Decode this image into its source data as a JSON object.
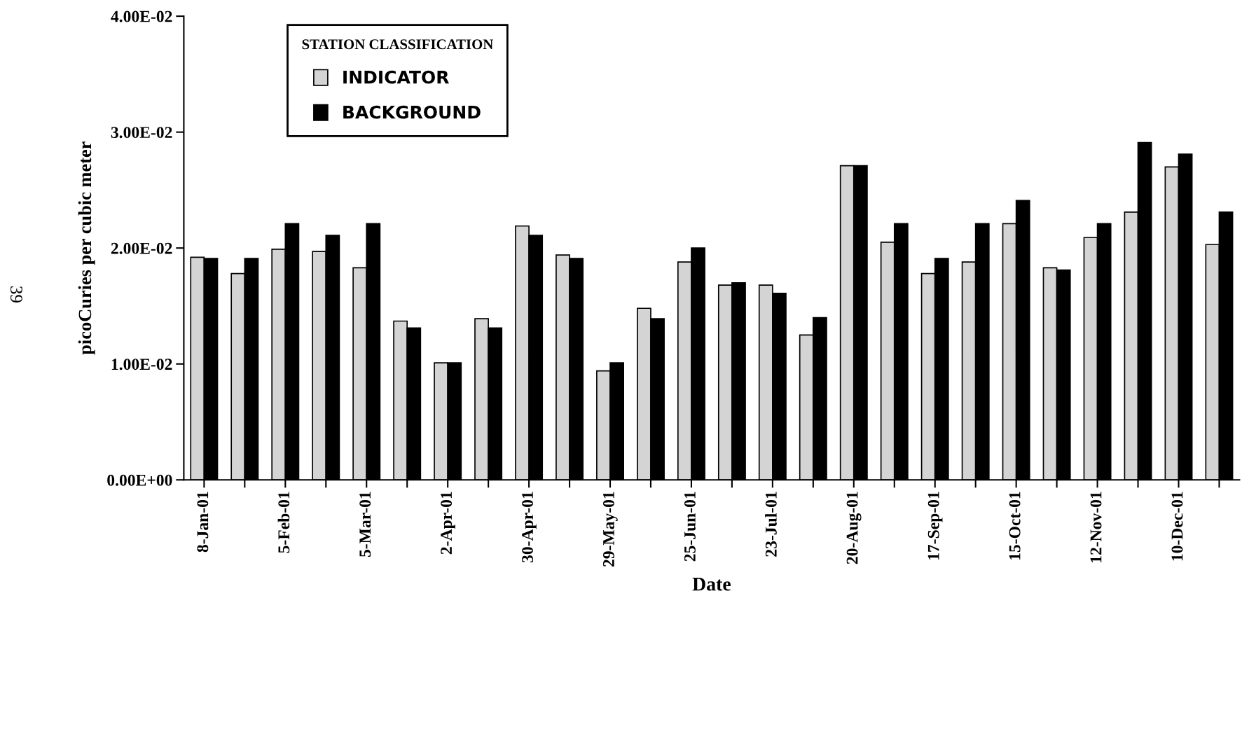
{
  "chart_data": {
    "type": "bar",
    "xlabel": "Date",
    "ylabel": "picoCuries per cubic meter",
    "legend_title": "STATION CLASSIFICATION",
    "categories": [
      "8-Jan-01",
      null,
      "5-Feb-01",
      null,
      "5-Mar-01",
      null,
      "2-Apr-01",
      null,
      "30-Apr-01",
      null,
      "29-May-01",
      null,
      "25-Jun-01",
      null,
      "23-Jul-01",
      null,
      "20-Aug-01",
      null,
      "17-Sep-01",
      null,
      "15-Oct-01",
      null,
      "12-Nov-01",
      null,
      "10-Dec-01",
      null
    ],
    "series": [
      {
        "name": "INDICATOR",
        "color": "#d4d4d4",
        "values": [
          0.0192,
          0.0178,
          0.0199,
          0.0197,
          0.0183,
          0.0137,
          0.0101,
          0.0139,
          0.0219,
          0.0194,
          0.0094,
          0.0148,
          0.0188,
          0.0168,
          0.0168,
          0.0125,
          0.0271,
          0.0205,
          0.0178,
          0.0188,
          0.0221,
          0.0183,
          0.0209,
          0.0231,
          0.027,
          0.0203
        ]
      },
      {
        "name": "BACKGROUND",
        "color": "#000000",
        "values": [
          0.0191,
          0.0191,
          0.0221,
          0.0211,
          0.0221,
          0.0131,
          0.0101,
          0.0131,
          0.0211,
          0.0191,
          0.0101,
          0.0139,
          0.02,
          0.017,
          0.0161,
          0.014,
          0.0271,
          0.0221,
          0.0191,
          0.0221,
          0.0241,
          0.0181,
          0.0221,
          0.0291,
          0.0281,
          0.0231
        ]
      }
    ],
    "ylim": [
      0,
      0.04
    ],
    "yticks": [
      {
        "value": 0,
        "label": "0.00E+00"
      },
      {
        "value": 0.01,
        "label": "1.00E-02"
      },
      {
        "value": 0.02,
        "label": "2.00E-02"
      },
      {
        "value": 0.03,
        "label": "3.00E-02"
      },
      {
        "value": 0.04,
        "label": "4.00E-02"
      }
    ],
    "annotations": [
      "39"
    ],
    "legend": "top left",
    "grid": false
  }
}
